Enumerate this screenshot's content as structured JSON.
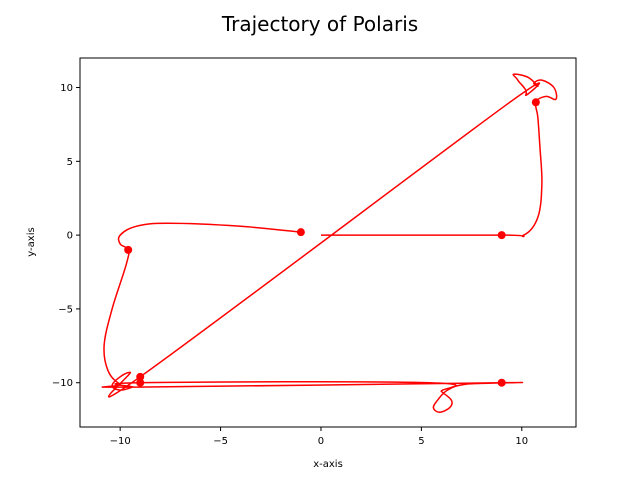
{
  "chart_data": {
    "type": "line",
    "title": "Trajectory of Polaris",
    "xlabel": "x-axis",
    "ylabel": "y-axis",
    "xlim": [
      -12,
      12.7
    ],
    "ylim": [
      -13,
      12
    ],
    "xticks": [
      -10,
      -5,
      0,
      5,
      10
    ],
    "yticks": [
      -10,
      -5,
      0,
      5,
      10
    ],
    "grid": false,
    "line_color": "#ff0000",
    "path": [
      [
        0,
        0
      ],
      [
        9,
        0
      ],
      [
        10.1,
        0.0
      ],
      [
        10.8,
        1.2
      ],
      [
        11.0,
        3.5
      ],
      [
        10.9,
        6.0
      ],
      [
        10.8,
        8.0
      ],
      [
        10.7,
        9.0
      ],
      [
        11.2,
        9.4
      ],
      [
        11.7,
        9.2
      ],
      [
        11.6,
        10.0
      ],
      [
        11.0,
        10.5
      ],
      [
        10.6,
        10.3
      ],
      [
        10.8,
        10.1
      ],
      [
        10.3,
        10.7
      ],
      [
        9.6,
        10.9
      ],
      [
        9.8,
        10.5
      ],
      [
        10.2,
        9.5
      ],
      [
        9,
        8.6
      ],
      [
        -9,
        -9.6
      ],
      [
        -9.5,
        -9.3
      ],
      [
        -10,
        -9.6
      ],
      [
        -10.4,
        -10.2
      ],
      [
        -10,
        -10.5
      ],
      [
        -9.4,
        -10.3
      ],
      [
        -9,
        -10
      ],
      [
        5.4,
        -10
      ],
      [
        6.0,
        -10.6
      ],
      [
        6.5,
        -11.2
      ],
      [
        6.4,
        -11.7
      ],
      [
        5.9,
        -12.0
      ],
      [
        5.6,
        -11.7
      ],
      [
        5.8,
        -11.2
      ],
      [
        6.3,
        -10.5
      ],
      [
        7.2,
        -10.1
      ],
      [
        9,
        -10
      ],
      [
        -9.2,
        -10.3
      ],
      [
        -10,
        -10.1
      ],
      [
        -10.6,
        -9.2
      ],
      [
        -10.8,
        -7.5
      ],
      [
        -10.4,
        -5
      ],
      [
        -9.7,
        -2
      ],
      [
        -9.6,
        -1
      ],
      [
        -10,
        -0.6
      ],
      [
        -10.0,
        0.0
      ],
      [
        -9.2,
        0.6
      ],
      [
        -7.6,
        0.8
      ],
      [
        -4.0,
        0.6
      ],
      [
        -1,
        0.2
      ]
    ],
    "markers": [
      [
        9,
        0
      ],
      [
        10.7,
        9
      ],
      [
        -9,
        -9.6
      ],
      [
        -9,
        -10
      ],
      [
        9,
        -10
      ],
      [
        -9.6,
        -1
      ],
      [
        -1,
        0.2
      ]
    ]
  }
}
